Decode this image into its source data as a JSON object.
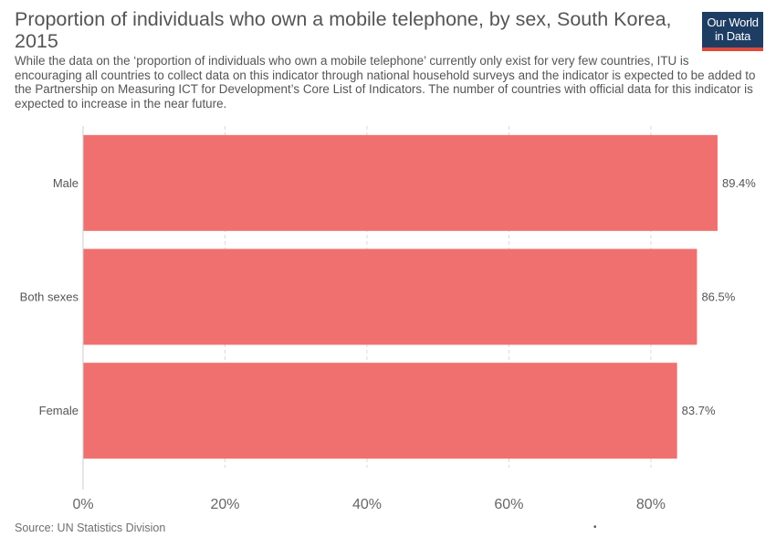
{
  "header": {
    "title": "Proportion of individuals who own a mobile telephone, by sex, South Korea, 2015",
    "subtitle": "While the data on the ‘proportion of individuals who own a mobile telephone’ currently only exist for very few countries, ITU is encouraging all countries to collect data on this indicator through national household surveys and the indicator is expected to be added to the Partnership on Measuring ICT for Development’s Core List of Indicators. The number of countries with official data for this indicator is expected to increase in the near future."
  },
  "logo": {
    "line1": "Our World",
    "line2": "in Data",
    "bg_color": "#1d3d63",
    "accent_color": "#dd4b39"
  },
  "footer": {
    "source": "Source: UN Statistics Division",
    "dot": "•"
  },
  "chart_data": {
    "type": "bar",
    "orientation": "horizontal",
    "categories": [
      "Male",
      "Both sexes",
      "Female"
    ],
    "values": [
      89.4,
      86.5,
      83.7
    ],
    "value_labels": [
      "89.4%",
      "86.5%",
      "83.7%"
    ],
    "xlim": [
      0,
      86.7
    ],
    "xticks": [
      0,
      20,
      40,
      60,
      80
    ],
    "xtick_labels": [
      "0%",
      "20%",
      "40%",
      "60%",
      "80%"
    ],
    "grid": true,
    "bar_color": "#f07070"
  }
}
